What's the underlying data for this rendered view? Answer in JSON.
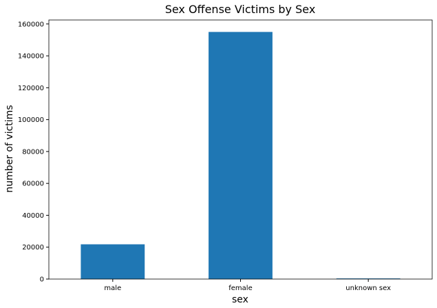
{
  "chart_data": {
    "type": "bar",
    "title": "Sex Offense Victims by Sex",
    "xlabel": "sex",
    "ylabel": "number of victims",
    "categories": [
      "male",
      "female",
      "unknown sex"
    ],
    "values": [
      21800,
      155000,
      400
    ],
    "ylim": [
      0,
      162500
    ],
    "yticks": [
      0,
      20000,
      40000,
      60000,
      80000,
      100000,
      120000,
      140000,
      160000
    ],
    "bar_color": "#1f77b4",
    "grid": false,
    "legend": "none"
  }
}
